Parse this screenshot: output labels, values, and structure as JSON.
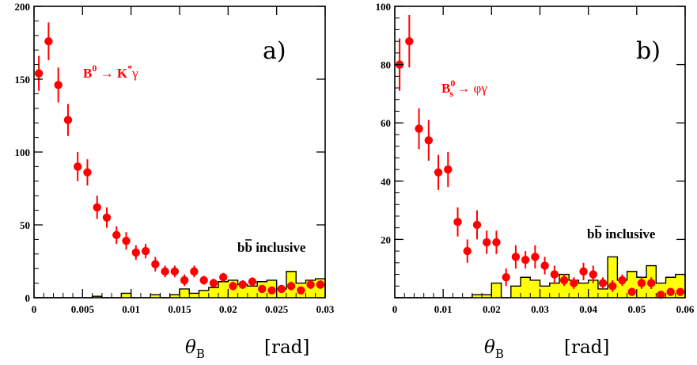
{
  "colors": {
    "signal": "#ff0000",
    "background_fill": "#ffff00",
    "background_line": "#000000",
    "axis": "#000000"
  },
  "chart_data": [
    {
      "type": "scatter",
      "panel_label": "a)",
      "decay_label": {
        "b": "B",
        "b_sup": "0",
        "arrow": " → ",
        "k": "K",
        "k_sup": "*",
        "gamma": "γ"
      },
      "background_label": {
        "b1": "b",
        "b2": "b",
        "rest": " inclusive"
      },
      "xlabel": {
        "theta": "θ",
        "sub": "B",
        "unit": "[rad]"
      },
      "xlim": [
        0,
        0.03
      ],
      "ylim": [
        0,
        200
      ],
      "xticks": [
        0,
        0.005,
        0.01,
        0.015,
        0.02,
        0.025,
        0.03
      ],
      "xtick_labels": [
        "0",
        "0.005",
        "0.01",
        "0.015",
        "0.02",
        "0.025",
        "0.03"
      ],
      "yticks": [
        0,
        50,
        100,
        150,
        200
      ],
      "ytick_labels": [
        "0",
        "50",
        "100",
        "150",
        "200"
      ],
      "series": [
        {
          "kind": "points",
          "x": [
            0.0005,
            0.0015,
            0.0025,
            0.0035,
            0.0045,
            0.0055,
            0.0065,
            0.0075,
            0.0085,
            0.0095,
            0.0105,
            0.0115,
            0.0125,
            0.0135,
            0.0145,
            0.0155,
            0.0165,
            0.0175,
            0.0185,
            0.0195,
            0.0205,
            0.0215,
            0.0225,
            0.0235,
            0.0245,
            0.0255,
            0.0265,
            0.0275,
            0.0285,
            0.0295
          ],
          "y": [
            154,
            176,
            146,
            122,
            90,
            86,
            62,
            55,
            43,
            39,
            31,
            32,
            23,
            18,
            18,
            12,
            18,
            12,
            10,
            14,
            8,
            9,
            11,
            6,
            5,
            6,
            8,
            5,
            9,
            9
          ],
          "err": [
            12,
            13,
            12,
            11,
            10,
            9,
            8,
            7,
            6,
            6,
            5,
            5,
            5,
            4,
            4,
            4,
            4,
            3,
            3,
            3,
            3,
            3,
            3,
            2,
            2,
            2,
            3,
            2,
            3,
            3
          ]
        },
        {
          "kind": "histogram",
          "bin_width": 0.001,
          "bin_start": 0,
          "values": [
            0,
            0,
            0,
            0,
            0,
            0,
            1,
            0,
            0,
            3,
            0,
            0,
            2,
            0,
            2,
            6,
            3,
            5,
            7,
            11,
            12,
            9,
            8,
            11,
            12,
            6,
            18,
            10,
            12,
            13
          ]
        }
      ]
    },
    {
      "type": "scatter",
      "panel_label": "b)",
      "decay_label": {
        "b": "B",
        "b_sub": "s",
        "b_sup": "0",
        "arrow": " → ",
        "phi": "φ",
        "gamma": "γ"
      },
      "background_label": {
        "b1": "b",
        "b2": "b",
        "rest": " inclusive"
      },
      "xlabel": {
        "theta": "θ",
        "sub": "B",
        "unit": "[rad]"
      },
      "xlim": [
        0,
        0.06
      ],
      "ylim": [
        0,
        100
      ],
      "xticks": [
        0,
        0.01,
        0.02,
        0.03,
        0.04,
        0.05,
        0.06
      ],
      "xtick_labels": [
        "0",
        "0.01",
        "0.02",
        "0.03",
        "0.04",
        "0.05",
        "0.06"
      ],
      "yticks": [
        20,
        40,
        60,
        80,
        100
      ],
      "ytick_labels": [
        "20",
        "40",
        "60",
        "80",
        "100"
      ],
      "series": [
        {
          "kind": "points",
          "x": [
            0.001,
            0.003,
            0.005,
            0.007,
            0.009,
            0.011,
            0.013,
            0.015,
            0.017,
            0.019,
            0.021,
            0.023,
            0.025,
            0.027,
            0.029,
            0.031,
            0.033,
            0.035,
            0.037,
            0.039,
            0.041,
            0.043,
            0.045,
            0.047,
            0.049,
            0.051,
            0.053,
            0.055,
            0.057,
            0.059
          ],
          "y": [
            80,
            88,
            58,
            54,
            43,
            44,
            26,
            16,
            25,
            19,
            19,
            7,
            14,
            13,
            14,
            11,
            8,
            6,
            5,
            9,
            8,
            5,
            4,
            6,
            2,
            5,
            5,
            1,
            2,
            2
          ],
          "err": [
            9,
            9,
            7,
            7,
            6,
            6,
            5,
            4,
            5,
            4,
            4,
            3,
            4,
            3,
            4,
            3,
            3,
            2,
            2,
            3,
            3,
            2,
            2,
            2,
            1,
            2,
            2,
            1,
            1,
            1
          ]
        },
        {
          "kind": "histogram",
          "bin_width": 0.002,
          "bin_start": 0,
          "values": [
            0,
            0,
            0,
            0,
            0,
            0,
            0,
            0,
            1,
            1,
            5,
            0,
            4,
            7,
            6,
            4,
            5,
            8,
            6,
            5,
            6,
            3,
            14,
            6,
            9,
            7,
            11,
            5,
            7,
            8
          ]
        }
      ]
    }
  ]
}
